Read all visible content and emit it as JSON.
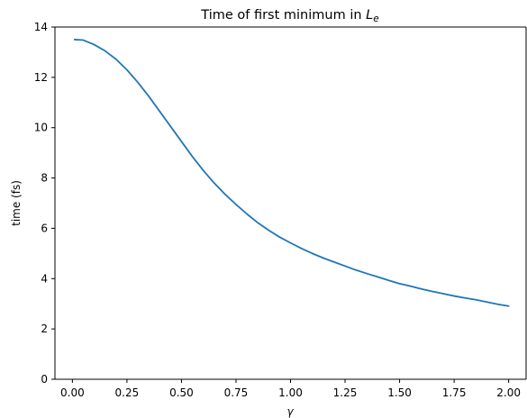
{
  "chart_data": {
    "type": "line",
    "title": "Time of first minimum in ",
    "title_math": "L",
    "title_math_sub": "e",
    "xlabel": "γ",
    "ylabel": "time (fs)",
    "xlim": [
      -0.08,
      2.08
    ],
    "ylim": [
      0,
      14
    ],
    "xticks": [
      0.0,
      0.25,
      0.5,
      0.75,
      1.0,
      1.25,
      1.5,
      1.75,
      2.0
    ],
    "xtick_labels": [
      "0.00",
      "0.25",
      "0.50",
      "0.75",
      "1.00",
      "1.25",
      "1.50",
      "1.75",
      "2.00"
    ],
    "yticks": [
      0,
      2,
      4,
      6,
      8,
      10,
      12,
      14
    ],
    "ytick_labels": [
      "0",
      "2",
      "4",
      "6",
      "8",
      "10",
      "12",
      "14"
    ],
    "grid": false,
    "series": [
      {
        "color": "#1f77b4",
        "x": [
          0.01,
          0.05,
          0.1,
          0.15,
          0.2,
          0.25,
          0.3,
          0.35,
          0.4,
          0.45,
          0.5,
          0.55,
          0.6,
          0.65,
          0.7,
          0.75,
          0.8,
          0.85,
          0.9,
          0.95,
          1.0,
          1.05,
          1.1,
          1.15,
          1.2,
          1.25,
          1.3,
          1.35,
          1.4,
          1.45,
          1.5,
          1.55,
          1.6,
          1.65,
          1.7,
          1.75,
          1.8,
          1.85,
          1.9,
          1.95,
          2.0
        ],
        "y": [
          13.5,
          13.48,
          13.3,
          13.05,
          12.72,
          12.3,
          11.8,
          11.25,
          10.65,
          10.05,
          9.45,
          8.85,
          8.3,
          7.8,
          7.35,
          6.95,
          6.57,
          6.22,
          5.92,
          5.65,
          5.42,
          5.2,
          5.0,
          4.82,
          4.66,
          4.5,
          4.34,
          4.2,
          4.07,
          3.93,
          3.8,
          3.7,
          3.59,
          3.49,
          3.4,
          3.31,
          3.23,
          3.16,
          3.07,
          2.98,
          2.91
        ]
      }
    ]
  }
}
